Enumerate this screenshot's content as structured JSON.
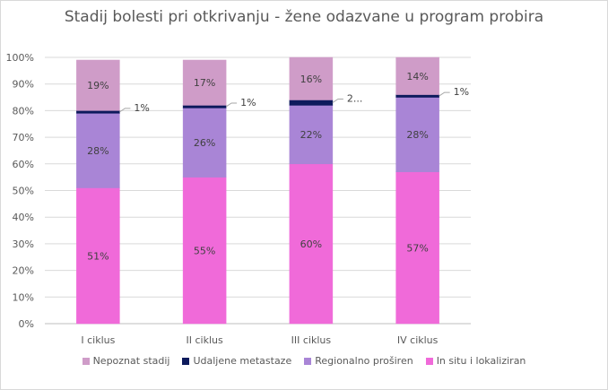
{
  "chart_data": {
    "type": "bar",
    "stacked": true,
    "title": "Stadij bolesti pri otkrivanju - žene odazvane u program probira",
    "categories": [
      "I ciklus",
      "II ciklus",
      "III ciklus",
      "IV ciklus"
    ],
    "ylim": [
      0,
      100
    ],
    "yticks": [
      "0%",
      "10%",
      "20%",
      "30%",
      "40%",
      "50%",
      "60%",
      "70%",
      "80%",
      "90%",
      "100%"
    ],
    "grid": true,
    "legend_position": "bottom",
    "series": [
      {
        "name": "In situ i lokaliziran",
        "values": [
          51,
          55,
          60,
          57
        ],
        "labels": [
          "51%",
          "55%",
          "60%",
          "57%"
        ],
        "color": "#f06ad9"
      },
      {
        "name": "Regionalno proširen",
        "values": [
          28,
          26,
          22,
          28
        ],
        "labels": [
          "28%",
          "26%",
          "22%",
          "28%"
        ],
        "color": "#a985d6"
      },
      {
        "name": "Udaljene metastaze",
        "values": [
          1,
          1,
          2,
          1
        ],
        "labels": [
          "1%",
          "1%",
          "2...",
          "1%"
        ],
        "color": "#0d1a5c"
      },
      {
        "name": "Nepoznat stadij",
        "values": [
          19,
          17,
          16,
          14
        ],
        "labels": [
          "19%",
          "17%",
          "16%",
          "14%"
        ],
        "color": "#cf9cc8"
      }
    ],
    "legend": [
      "Nepoznat stadij",
      "Udaljene metastaze",
      "Regionalno proširen",
      "In situ i lokaliziran"
    ]
  }
}
